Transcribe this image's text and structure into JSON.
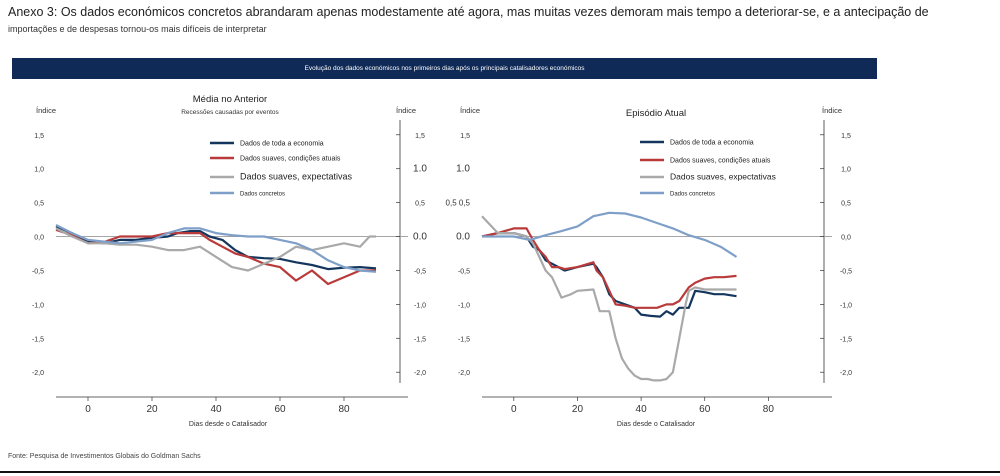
{
  "header": {
    "title": "Anexo 3: Os dados económicos concretos abrandaram apenas modestamente até agora, mas muitas vezes demoram mais tempo a deteriorar-se, e a antecipação de",
    "subtitle": "importações e de despesas tornou-os mais difíceis de interpretar"
  },
  "banner": "Evolução dos dados económicos nos primeiros dias após os principais catalisadores económicos",
  "source": "Fonte: Pesquisa de Investimentos Globais do Goldman Sachs",
  "colors": {
    "toda": "#14365e",
    "suaves_atuais": "#b83a3a",
    "suaves_expect": "#a9a9a9",
    "concretos": "#7e9fc8",
    "banner": "#0f2a57"
  },
  "chart_data": [
    {
      "type": "line",
      "title": "Média no Anterior",
      "subtitle": "Recessões causadas por eventos",
      "ylabel_left": "Índice",
      "ylabel_right": "Índice",
      "xlabel": "Dias desde o Catalisador",
      "xlim": [
        -10,
        100
      ],
      "ylim": [
        -2.1,
        1.6
      ],
      "xticks": [
        "0",
        "20",
        "40",
        "60",
        "80"
      ],
      "yticks_left": [
        "1,5",
        "1,0",
        "0,5",
        "0,0",
        "-0,5",
        "-1,0",
        "-1,5",
        "-2,0"
      ],
      "yticks_right": [
        "1,5",
        "1.0",
        "0,5",
        "0.0",
        "-0,5",
        "-1,0",
        "-1,5",
        "-2,0"
      ],
      "legend": [
        {
          "key": "toda",
          "label": "Dados de toda a economia"
        },
        {
          "key": "suaves_atuais",
          "label": "Dados suaves, condições atuais"
        },
        {
          "key": "suaves_expect",
          "label": "Dados suaves, expectativas"
        },
        {
          "key": "concretos",
          "label": "Dados concretos"
        }
      ],
      "series": [
        {
          "key": "toda",
          "x": [
            -10,
            -5,
            0,
            5,
            10,
            15,
            20,
            25,
            28,
            32,
            35,
            38,
            42,
            46,
            50,
            55,
            60,
            65,
            70,
            75,
            80,
            85,
            90
          ],
          "y": [
            0.15,
            0.05,
            -0.08,
            -0.1,
            -0.05,
            -0.05,
            -0.02,
            0.0,
            0.05,
            0.08,
            0.08,
            0.0,
            -0.05,
            -0.2,
            -0.3,
            -0.32,
            -0.33,
            -0.38,
            -0.42,
            -0.48,
            -0.46,
            -0.45,
            -0.47
          ]
        },
        {
          "key": "suaves_atuais",
          "x": [
            -10,
            -5,
            0,
            5,
            10,
            15,
            20,
            25,
            28,
            32,
            35,
            38,
            42,
            46,
            50,
            55,
            60,
            65,
            70,
            75,
            80,
            85,
            90
          ],
          "y": [
            0.1,
            0.02,
            -0.1,
            -0.08,
            0.0,
            0.0,
            0.0,
            0.05,
            0.05,
            0.05,
            0.05,
            -0.05,
            -0.15,
            -0.25,
            -0.3,
            -0.4,
            -0.45,
            -0.65,
            -0.5,
            -0.7,
            -0.6,
            -0.5,
            -0.5
          ]
        },
        {
          "key": "suaves_expect",
          "x": [
            -10,
            -5,
            0,
            5,
            10,
            15,
            20,
            25,
            30,
            35,
            40,
            45,
            50,
            55,
            60,
            65,
            70,
            75,
            80,
            85,
            88,
            90
          ],
          "y": [
            0.12,
            0.0,
            -0.1,
            -0.1,
            -0.12,
            -0.12,
            -0.15,
            -0.2,
            -0.2,
            -0.15,
            -0.3,
            -0.45,
            -0.5,
            -0.4,
            -0.3,
            -0.15,
            -0.2,
            -0.15,
            -0.1,
            -0.15,
            0.0,
            0.0
          ]
        },
        {
          "key": "concretos",
          "x": [
            -10,
            -5,
            0,
            10,
            20,
            25,
            30,
            35,
            40,
            45,
            50,
            55,
            60,
            65,
            70,
            75,
            80,
            85,
            90
          ],
          "y": [
            0.17,
            0.05,
            -0.05,
            -0.1,
            -0.05,
            0.05,
            0.12,
            0.12,
            0.05,
            0.02,
            0.0,
            0.0,
            -0.05,
            -0.1,
            -0.2,
            -0.35,
            -0.45,
            -0.5,
            -0.52
          ]
        }
      ]
    },
    {
      "type": "line",
      "title": "Episódio Atual",
      "ylabel_left": "Índice",
      "ylabel_right": "Índice",
      "xlabel": "Dias desde o Catalisador",
      "xlim": [
        -10,
        100
      ],
      "ylim": [
        -2.1,
        1.6
      ],
      "xticks": [
        "0",
        "20",
        "40",
        "60",
        "80"
      ],
      "yticks_left": [
        "1,5",
        "1.0",
        "0,5 0,5",
        "0.0",
        "-0,5",
        "-1,0",
        "-1,5",
        "-2,0"
      ],
      "yticks_right": [
        "1,5",
        "1,0",
        "0,5",
        "0,0",
        "-0,5",
        "-1,0",
        "-1,5",
        "-2,0"
      ],
      "legend": [
        {
          "key": "toda",
          "label": "Dados de toda a economia"
        },
        {
          "key": "suaves_atuais",
          "label": "Dados suaves, condições atuais"
        },
        {
          "key": "suaves_expect",
          "label": "Dados suaves, expectativas"
        },
        {
          "key": "concretos",
          "label": "Dados concretos"
        }
      ],
      "series": [
        {
          "key": "toda",
          "x": [
            -10,
            -5,
            0,
            4,
            6,
            8,
            10,
            12,
            14,
            16,
            20,
            25,
            26,
            28,
            30,
            32,
            35,
            38,
            40,
            43,
            46,
            48,
            50,
            52,
            55,
            57,
            60,
            63,
            66,
            70
          ],
          "y": [
            0.0,
            0.05,
            0.05,
            0.0,
            -0.15,
            -0.2,
            -0.35,
            -0.4,
            -0.45,
            -0.5,
            -0.45,
            -0.4,
            -0.45,
            -0.6,
            -0.85,
            -0.95,
            -1.0,
            -1.05,
            -1.15,
            -1.17,
            -1.18,
            -1.1,
            -1.15,
            -1.05,
            -1.05,
            -0.8,
            -0.82,
            -0.85,
            -0.85,
            -0.88
          ]
        },
        {
          "key": "suaves_atuais",
          "x": [
            -10,
            -5,
            0,
            4,
            6,
            8,
            10,
            12,
            14,
            16,
            20,
            25,
            26,
            28,
            30,
            32,
            35,
            38,
            40,
            45,
            48,
            50,
            52,
            55,
            57,
            60,
            63,
            66,
            70
          ],
          "y": [
            0.0,
            0.05,
            0.12,
            0.12,
            -0.05,
            -0.2,
            -0.3,
            -0.45,
            -0.45,
            -0.48,
            -0.45,
            -0.38,
            -0.5,
            -0.6,
            -0.8,
            -1.0,
            -1.02,
            -1.05,
            -1.05,
            -1.05,
            -1.0,
            -1.0,
            -0.95,
            -0.75,
            -0.68,
            -0.62,
            -0.6,
            -0.6,
            -0.58
          ]
        },
        {
          "key": "suaves_expect",
          "x": [
            -10,
            -5,
            0,
            4,
            6,
            8,
            10,
            12,
            15,
            18,
            20,
            25,
            27,
            30,
            32,
            34,
            36,
            38,
            40,
            42,
            44,
            46,
            48,
            50,
            52,
            54,
            55,
            57,
            60,
            63,
            66,
            70
          ],
          "y": [
            0.3,
            0.05,
            0.05,
            0.0,
            -0.1,
            -0.3,
            -0.5,
            -0.6,
            -0.9,
            -0.85,
            -0.8,
            -0.78,
            -1.1,
            -1.1,
            -1.5,
            -1.8,
            -1.95,
            -2.05,
            -2.1,
            -2.1,
            -2.12,
            -2.12,
            -2.1,
            -2.0,
            -1.5,
            -1.0,
            -0.8,
            -0.75,
            -0.78,
            -0.78,
            -0.78,
            -0.78
          ]
        },
        {
          "key": "concretos",
          "x": [
            -10,
            -5,
            0,
            5,
            10,
            15,
            20,
            25,
            30,
            35,
            40,
            45,
            50,
            55,
            60,
            65,
            70
          ],
          "y": [
            0.0,
            0.0,
            0.0,
            -0.05,
            0.02,
            0.08,
            0.15,
            0.3,
            0.35,
            0.34,
            0.28,
            0.2,
            0.12,
            0.02,
            -0.05,
            -0.15,
            -0.3
          ]
        }
      ]
    }
  ]
}
